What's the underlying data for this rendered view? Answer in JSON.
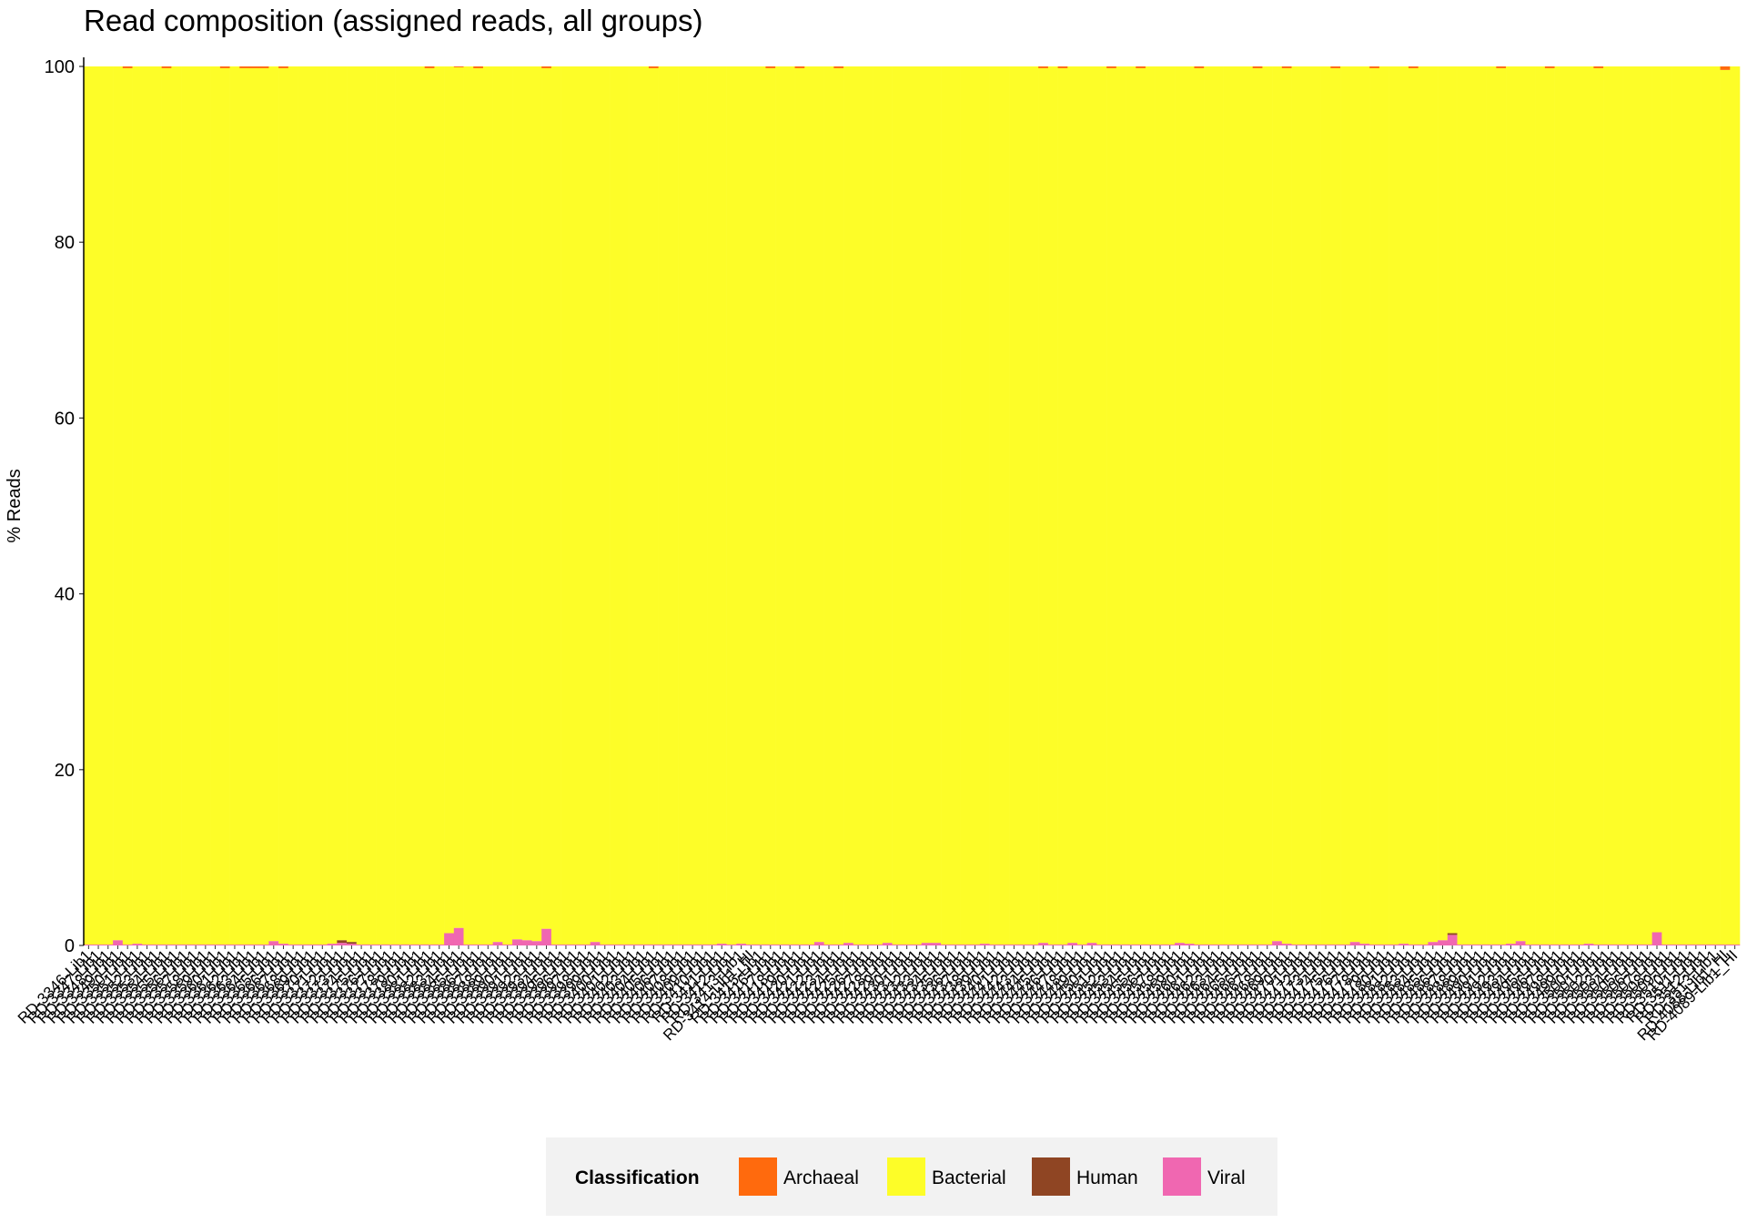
{
  "chart_data": {
    "type": "stacked_bar",
    "title": "Read composition (assigned reads, all groups)",
    "y_label": "% Reads",
    "legend_title": "Classification",
    "legend_position": "bottom",
    "ylim": [
      0,
      100
    ],
    "yticks": [
      0,
      20,
      40,
      60,
      80,
      100
    ],
    "categories": [
      "RD-3346-Lib1",
      "RD-3347-Lib1",
      "RD-3348-Lib1",
      "RD-3349-Lib1",
      "RD-3350-Lib1",
      "RD-3351-Lib1",
      "RD-3352-Lib1",
      "RD-3353-Lib1",
      "RD-3354-Lib1",
      "RD-3355-Lib1",
      "RD-3356-Lib1",
      "RD-3357-Lib1",
      "RD-3358-Lib1",
      "RD-3359-Lib1",
      "RD-3360-Lib1",
      "RD-3361-Lib1",
      "RD-3362-Lib1",
      "RD-3363-Lib1",
      "RD-3364-Lib1",
      "RD-3365-Lib1",
      "RD-3366-Lib1",
      "RD-3367-Lib1",
      "RD-3368-Lib1",
      "RD-3369-Lib1",
      "RD-3370-Lib1",
      "RD-3371-Lib1",
      "RD-3372-Lib1",
      "RD-3373-Lib1",
      "RD-3374-Lib1",
      "RD-3375-Lib1",
      "RD-3376-Lib1",
      "RD-3377-Lib1",
      "RD-3378-Lib1",
      "RD-3379-Lib1",
      "RD-3380-Lib1",
      "RD-3381-Lib1",
      "RD-3382-Lib1",
      "RD-3383-Lib1",
      "RD-3384-Lib1",
      "RD-3385-Lib1",
      "RD-3386-Lib1",
      "RD-3387-Lib1",
      "RD-3388-Lib1",
      "RD-3389-Lib1",
      "RD-3390-Lib1",
      "RD-3391-Lib1",
      "RD-3392-Lib1",
      "RD-3393-Lib1",
      "RD-3394-Lib1",
      "RD-3395-Lib1",
      "RD-3396-Lib1",
      "RD-3397-Lib1",
      "RD-3398-Lib1",
      "RD-3399-Lib1",
      "RD-3400-Lib1",
      "RD-3401-Lib1",
      "RD-3402-Lib1",
      "RD-3403-Lib1",
      "RD-3404-Lib1",
      "RD-3405-Lib1",
      "RD-3406-Lib1",
      "RD-3407-Lib1",
      "RD-3408-Lib1",
      "RD-3409-Lib1",
      "RD-3410-Lib1",
      "RD-3411-Lib1",
      "RD-3412-Lib1",
      "RD-3413-Lib1",
      "RD-3414-Lib1_HI",
      "RD-3415-Lib1",
      "RD-3416-Lib1",
      "RD-3417-Lib1",
      "RD-3418-Lib1",
      "RD-3419-Lib1",
      "RD-3420-Lib1",
      "RD-3421-Lib1",
      "RD-3422-Lib1",
      "RD-3423-Lib1",
      "RD-3424-Lib1",
      "RD-3425-Lib1",
      "RD-3426-Lib1",
      "RD-3427-Lib1",
      "RD-3428-Lib1",
      "RD-3429-Lib1",
      "RD-3430-Lib1",
      "RD-3431-Lib1",
      "RD-3432-Lib1",
      "RD-3433-Lib1",
      "RD-3434-Lib1",
      "RD-3435-Lib1",
      "RD-3436-Lib1",
      "RD-3437-Lib1",
      "RD-3438-Lib1",
      "RD-3439-Lib1",
      "RD-3440-Lib1",
      "RD-3441-Lib1",
      "RD-3442-Lib1",
      "RD-3443-Lib1",
      "RD-3444-Lib1",
      "RD-3445-Lib1",
      "RD-3446-Lib1",
      "RD-3447-Lib1",
      "RD-3448-Lib1",
      "RD-3449-Lib1",
      "RD-3450-Lib1",
      "RD-3451-Lib1",
      "RD-3452-Lib1",
      "RD-3453-Lib1",
      "RD-3454-Lib1",
      "RD-3455-Lib1",
      "RD-3456-Lib1",
      "RD-3457-Lib1",
      "RD-3458-Lib1",
      "RD-3459-Lib1",
      "RD-3460-Lib1",
      "RD-3461-Lib1",
      "RD-3462-Lib1",
      "RD-3463-Lib1",
      "RD-3464-Lib1",
      "RD-3465-Lib1",
      "RD-3466-Lib1",
      "RD-3467-Lib1",
      "RD-3468-Lib1",
      "RD-3469-Lib1",
      "RD-3470-Lib1",
      "RD-3471-Lib1",
      "RD-3472-Lib1",
      "RD-3473-Lib1",
      "RD-3474-Lib1",
      "RD-3475-Lib1",
      "RD-3476-Lib1",
      "RD-3477-Lib1",
      "RD-3478-Lib1",
      "RD-3479-Lib1",
      "RD-3480-Lib1",
      "RD-3481-Lib1",
      "RD-3482-Lib1",
      "RD-3483-Lib1",
      "RD-3484-Lib1",
      "RD-3485-Lib1",
      "RD-3486-Lib1",
      "RD-3487-Lib1",
      "RD-3488-Lib1",
      "RD-3489-Lib1",
      "RD-3490-Lib1",
      "RD-3491-Lib1",
      "RD-3492-Lib1",
      "RD-3493-Lib1",
      "RD-3494-Lib1",
      "RD-3495-Lib1",
      "RD-3496-Lib1",
      "RD-3497-Lib1",
      "RD-3498-Lib1",
      "RD-3499-Lib1",
      "RD-3500-Lib1",
      "RD-3501-Lib1",
      "RD-3502-Lib1",
      "RD-3503-Lib1",
      "RD-3504-Lib1",
      "RD-3505-Lib1",
      "RD-3506-Lib1",
      "RD-3507-Lib1",
      "RD-3508-Lib1",
      "RD-3509-Lib1",
      "RD-3510-Lib1",
      "RD-3511-Lib1",
      "RD-3512-Lib1",
      "RD-3513-Lib1",
      "RD-4088-Lib1_HI",
      "RD-4089-Lib1_HI"
    ],
    "series": [
      {
        "name": "Archaeal",
        "color": "#ff6a0d",
        "values": [
          0,
          0,
          0,
          0,
          0.2,
          0,
          0,
          0,
          0.2,
          0,
          0,
          0,
          0,
          0,
          0.2,
          0,
          0.2,
          0.2,
          0.2,
          0,
          0.2,
          0,
          0,
          0,
          0,
          0,
          0,
          0,
          0,
          0,
          0,
          0,
          0,
          0,
          0,
          0.2,
          0,
          0,
          0.1,
          0,
          0.2,
          0,
          0,
          0,
          0,
          0,
          0,
          0.2,
          0,
          0,
          0,
          0,
          0,
          0,
          0,
          0,
          0,
          0,
          0.2,
          0,
          0,
          0,
          0,
          0,
          0,
          0,
          0,
          0,
          0,
          0,
          0.2,
          0,
          0,
          0.2,
          0,
          0,
          0,
          0.2,
          0,
          0,
          0,
          0,
          0,
          0,
          0,
          0,
          0,
          0,
          0,
          0,
          0,
          0,
          0,
          0,
          0,
          0,
          0,
          0,
          0.2,
          0,
          0.2,
          0,
          0,
          0,
          0,
          0.2,
          0,
          0,
          0.2,
          0,
          0,
          0,
          0,
          0,
          0.2,
          0,
          0,
          0,
          0,
          0,
          0.2,
          0,
          0,
          0.2,
          0,
          0,
          0,
          0,
          0.2,
          0,
          0,
          0,
          0.2,
          0,
          0,
          0,
          0.2,
          0,
          0,
          0,
          0,
          0,
          0,
          0,
          0,
          0.2,
          0,
          0,
          0,
          0,
          0.2,
          0,
          0,
          0,
          0,
          0.2,
          0,
          0,
          0,
          0,
          0,
          0,
          0,
          0,
          0,
          0,
          0,
          0,
          0.4,
          0
        ]
      },
      {
        "name": "Bacterial",
        "color": "#fdfd28",
        "values": [
          99.9,
          99.9,
          99.9,
          99.4,
          99.7,
          99.8,
          99.9,
          99.9,
          99.7,
          99.9,
          99.9,
          99.9,
          99.9,
          99.9,
          99.7,
          99.9,
          99.7,
          99.7,
          99.7,
          99.5,
          99.6,
          99.9,
          99.9,
          99.9,
          99.9,
          99.8,
          99.4,
          99.6,
          99.9,
          99.9,
          99.9,
          99.9,
          99.9,
          99.9,
          99.9,
          99.7,
          99.9,
          98.6,
          97.9,
          99.9,
          99.7,
          99.9,
          99.6,
          99.9,
          99.3,
          99.4,
          99.5,
          97.9,
          99.9,
          99.9,
          99.9,
          99.9,
          99.6,
          99.9,
          99.9,
          99.9,
          99.9,
          99.9,
          99.7,
          99.9,
          99.9,
          99.9,
          99.9,
          99.9,
          99.9,
          99.8,
          99.9,
          99.8,
          99.9,
          99.9,
          99.7,
          99.9,
          99.9,
          99.7,
          99.9,
          99.6,
          99.9,
          99.7,
          99.7,
          99.9,
          99.9,
          99.9,
          99.7,
          99.9,
          99.9,
          99.9,
          99.7,
          99.7,
          99.9,
          99.9,
          99.9,
          99.9,
          99.8,
          99.9,
          99.9,
          99.9,
          99.9,
          99.9,
          99.5,
          99.9,
          99.7,
          99.7,
          99.9,
          99.7,
          99.9,
          99.7,
          99.9,
          99.9,
          99.7,
          99.9,
          99.9,
          99.9,
          99.7,
          99.8,
          99.7,
          99.9,
          99.9,
          99.9,
          99.9,
          99.9,
          99.7,
          99.9,
          99.5,
          99.6,
          99.9,
          99.9,
          99.9,
          99.9,
          99.7,
          99.9,
          99.6,
          99.8,
          99.7,
          99.9,
          99.9,
          99.8,
          99.7,
          99.9,
          99.6,
          99.4,
          98.6,
          99.9,
          99.9,
          99.9,
          99.9,
          99.7,
          99.8,
          99.5,
          99.9,
          99.9,
          99.7,
          99.9,
          99.9,
          99.9,
          99.8,
          99.7,
          99.9,
          99.9,
          99.9,
          99.9,
          99.9,
          98.5,
          99.9,
          99.9,
          99.9,
          99.9,
          99.9,
          99.9,
          99.5,
          99.9
        ]
      },
      {
        "name": "Human",
        "color": "#8f4523",
        "values": [
          0,
          0,
          0,
          0,
          0,
          0,
          0,
          0,
          0,
          0,
          0,
          0,
          0,
          0,
          0,
          0,
          0,
          0,
          0,
          0,
          0,
          0,
          0,
          0,
          0,
          0,
          0.3,
          0.2,
          0,
          0,
          0,
          0,
          0,
          0,
          0,
          0,
          0,
          0,
          0,
          0,
          0,
          0,
          0,
          0,
          0,
          0,
          0,
          0,
          0,
          0,
          0,
          0,
          0,
          0,
          0,
          0,
          0,
          0,
          0,
          0,
          0,
          0,
          0,
          0,
          0,
          0,
          0,
          0,
          0,
          0,
          0,
          0,
          0,
          0,
          0,
          0,
          0,
          0,
          0,
          0,
          0,
          0,
          0,
          0,
          0,
          0,
          0,
          0,
          0,
          0,
          0,
          0,
          0,
          0,
          0,
          0,
          0,
          0,
          0,
          0,
          0,
          0,
          0,
          0,
          0,
          0,
          0,
          0,
          0,
          0,
          0,
          0,
          0,
          0,
          0,
          0,
          0,
          0,
          0,
          0,
          0,
          0,
          0,
          0,
          0,
          0,
          0,
          0,
          0,
          0,
          0,
          0,
          0,
          0,
          0,
          0,
          0,
          0,
          0,
          0,
          0.2,
          0,
          0,
          0,
          0,
          0,
          0,
          0,
          0,
          0,
          0,
          0,
          0,
          0,
          0,
          0,
          0,
          0,
          0,
          0,
          0,
          0,
          0,
          0,
          0,
          0,
          0,
          0,
          0,
          0
        ]
      },
      {
        "name": "Viral",
        "color": "#f067b1",
        "values": [
          0.1,
          0.1,
          0.1,
          0.6,
          0.1,
          0.2,
          0.1,
          0.1,
          0.1,
          0.1,
          0.1,
          0.1,
          0.1,
          0.1,
          0.1,
          0.1,
          0.1,
          0.1,
          0.1,
          0.5,
          0.2,
          0.1,
          0.1,
          0.1,
          0.1,
          0.2,
          0.3,
          0.2,
          0.1,
          0.1,
          0.1,
          0.1,
          0.1,
          0.1,
          0.1,
          0.1,
          0.1,
          1.4,
          2.0,
          0.1,
          0.1,
          0.1,
          0.4,
          0.1,
          0.7,
          0.6,
          0.5,
          1.9,
          0.1,
          0.1,
          0.1,
          0.1,
          0.4,
          0.1,
          0.1,
          0.1,
          0.1,
          0.1,
          0.1,
          0.1,
          0.1,
          0.1,
          0.1,
          0.1,
          0.1,
          0.2,
          0.1,
          0.2,
          0.1,
          0.1,
          0.1,
          0.1,
          0.1,
          0.1,
          0.1,
          0.4,
          0.1,
          0.1,
          0.3,
          0.1,
          0.1,
          0.1,
          0.3,
          0.1,
          0.1,
          0.1,
          0.3,
          0.3,
          0.1,
          0.1,
          0.1,
          0.1,
          0.2,
          0.1,
          0.1,
          0.1,
          0.1,
          0.1,
          0.3,
          0.1,
          0.1,
          0.3,
          0.1,
          0.3,
          0.1,
          0.1,
          0.1,
          0.1,
          0.1,
          0.1,
          0.1,
          0.1,
          0.3,
          0.2,
          0.1,
          0.1,
          0.1,
          0.1,
          0.1,
          0.1,
          0.1,
          0.1,
          0.5,
          0.2,
          0.1,
          0.1,
          0.1,
          0.1,
          0.1,
          0.1,
          0.4,
          0.2,
          0.1,
          0.1,
          0.1,
          0.2,
          0.1,
          0.1,
          0.4,
          0.6,
          1.2,
          0.1,
          0.1,
          0.1,
          0.1,
          0.1,
          0.2,
          0.5,
          0.1,
          0.1,
          0.1,
          0.1,
          0.1,
          0.1,
          0.2,
          0.1,
          0.1,
          0.1,
          0.1,
          0.1,
          0.1,
          1.5,
          0.1,
          0.1,
          0.1,
          0.1,
          0.1,
          0.1,
          0.1,
          0.1
        ]
      }
    ]
  }
}
